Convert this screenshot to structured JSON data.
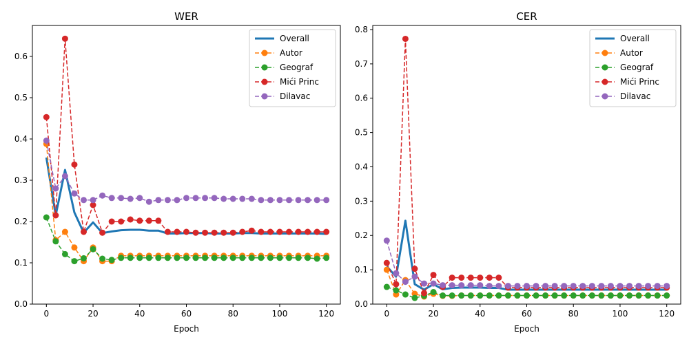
{
  "chart_data": [
    {
      "type": "line",
      "title": "WER",
      "xlabel": "Epoch",
      "ylabel": "",
      "xlim": [
        -6,
        126
      ],
      "ylim": [
        0,
        0.675
      ],
      "xticks": [
        0,
        20,
        40,
        60,
        80,
        100,
        120
      ],
      "yticks": [
        0.0,
        0.1,
        0.2,
        0.3,
        0.4,
        0.5,
        0.6
      ],
      "ytick_labels": [
        "0.0",
        "0.1",
        "0.2",
        "0.3",
        "0.4",
        "0.5",
        "0.6"
      ],
      "legend": "top-right",
      "x": [
        0,
        4,
        8,
        12,
        16,
        20,
        24,
        28,
        32,
        36,
        40,
        44,
        48,
        52,
        56,
        60,
        64,
        68,
        72,
        76,
        80,
        84,
        88,
        92,
        96,
        100,
        104,
        108,
        112,
        116,
        120
      ],
      "series": [
        {
          "name": "Overall",
          "style": "solid",
          "color": "#1f77b4",
          "values": [
            0.355,
            0.215,
            0.325,
            0.222,
            0.173,
            0.198,
            0.172,
            0.176,
            0.179,
            0.18,
            0.18,
            0.178,
            0.178,
            0.171,
            0.171,
            0.172,
            0.172,
            0.172,
            0.171,
            0.171,
            0.171,
            0.172,
            0.172,
            0.171,
            0.171,
            0.171,
            0.171,
            0.171,
            0.171,
            0.171,
            0.17
          ]
        },
        {
          "name": "Autor",
          "style": "dashed",
          "color": "#ff7f0e",
          "values": [
            0.388,
            0.155,
            0.175,
            0.137,
            0.104,
            0.137,
            0.104,
            0.104,
            0.117,
            0.117,
            0.117,
            0.117,
            0.117,
            0.117,
            0.117,
            0.117,
            0.117,
            0.117,
            0.117,
            0.117,
            0.117,
            0.117,
            0.117,
            0.117,
            0.117,
            0.117,
            0.117,
            0.117,
            0.117,
            0.117,
            0.117
          ]
        },
        {
          "name": "Geograf",
          "style": "dashed",
          "color": "#2ca02c",
          "values": [
            0.21,
            0.152,
            0.121,
            0.104,
            0.111,
            0.133,
            0.11,
            0.107,
            0.112,
            0.112,
            0.112,
            0.112,
            0.112,
            0.112,
            0.112,
            0.112,
            0.112,
            0.112,
            0.112,
            0.112,
            0.112,
            0.112,
            0.112,
            0.112,
            0.112,
            0.112,
            0.112,
            0.112,
            0.112,
            0.11,
            0.112
          ]
        },
        {
          "name": "Mići Princ",
          "style": "dashed",
          "color": "#d62728",
          "values": [
            0.453,
            0.215,
            0.643,
            0.338,
            0.175,
            0.24,
            0.173,
            0.2,
            0.2,
            0.205,
            0.202,
            0.202,
            0.202,
            0.175,
            0.175,
            0.175,
            0.173,
            0.173,
            0.173,
            0.173,
            0.173,
            0.175,
            0.178,
            0.175,
            0.175,
            0.175,
            0.175,
            0.175,
            0.175,
            0.175,
            0.175
          ]
        },
        {
          "name": "Dilavac",
          "style": "dashed",
          "color": "#9467bd",
          "values": [
            0.396,
            0.28,
            0.31,
            0.268,
            0.252,
            0.252,
            0.263,
            0.257,
            0.257,
            0.255,
            0.257,
            0.248,
            0.252,
            0.252,
            0.252,
            0.257,
            0.257,
            0.257,
            0.257,
            0.255,
            0.255,
            0.255,
            0.255,
            0.252,
            0.252,
            0.252,
            0.252,
            0.252,
            0.252,
            0.252,
            0.252
          ]
        }
      ]
    },
    {
      "type": "line",
      "title": "CER",
      "xlabel": "Epoch",
      "ylabel": "",
      "xlim": [
        -6,
        126
      ],
      "ylim": [
        0,
        0.812
      ],
      "xticks": [
        0,
        20,
        40,
        60,
        80,
        100,
        120
      ],
      "yticks": [
        0.0,
        0.1,
        0.2,
        0.3,
        0.4,
        0.5,
        0.6,
        0.7,
        0.8
      ],
      "ytick_labels": [
        "0.0",
        "0.1",
        "0.2",
        "0.3",
        "0.4",
        "0.5",
        "0.6",
        "0.7",
        "0.8"
      ],
      "legend": "top-right",
      "x": [
        0,
        4,
        8,
        12,
        16,
        20,
        24,
        28,
        32,
        36,
        40,
        44,
        48,
        52,
        56,
        60,
        64,
        68,
        72,
        76,
        80,
        84,
        88,
        92,
        96,
        100,
        104,
        108,
        112,
        116,
        120
      ],
      "series": [
        {
          "name": "Overall",
          "style": "solid",
          "color": "#1f77b4",
          "values": [
            0.11,
            0.08,
            0.243,
            0.058,
            0.042,
            0.058,
            0.043,
            0.047,
            0.048,
            0.048,
            0.048,
            0.047,
            0.047,
            0.042,
            0.042,
            0.042,
            0.042,
            0.042,
            0.042,
            0.042,
            0.042,
            0.042,
            0.042,
            0.042,
            0.042,
            0.042,
            0.042,
            0.042,
            0.042,
            0.042,
            0.042
          ]
        },
        {
          "name": "Autor",
          "style": "dashed",
          "color": "#ff7f0e",
          "values": [
            0.1,
            0.028,
            0.07,
            0.03,
            0.022,
            0.03,
            0.024,
            0.024,
            0.025,
            0.025,
            0.025,
            0.025,
            0.025,
            0.025,
            0.025,
            0.025,
            0.025,
            0.025,
            0.025,
            0.025,
            0.025,
            0.025,
            0.025,
            0.025,
            0.025,
            0.025,
            0.025,
            0.025,
            0.025,
            0.025,
            0.025
          ]
        },
        {
          "name": "Geograf",
          "style": "dashed",
          "color": "#2ca02c",
          "values": [
            0.05,
            0.04,
            0.028,
            0.018,
            0.024,
            0.035,
            0.025,
            0.025,
            0.025,
            0.025,
            0.025,
            0.025,
            0.025,
            0.025,
            0.025,
            0.025,
            0.025,
            0.025,
            0.025,
            0.025,
            0.025,
            0.025,
            0.025,
            0.025,
            0.025,
            0.025,
            0.025,
            0.025,
            0.025,
            0.025,
            0.025
          ]
        },
        {
          "name": "Mići Princ",
          "style": "dashed",
          "color": "#d62728",
          "values": [
            0.12,
            0.058,
            0.773,
            0.103,
            0.032,
            0.085,
            0.05,
            0.077,
            0.077,
            0.077,
            0.077,
            0.077,
            0.077,
            0.048,
            0.048,
            0.048,
            0.048,
            0.048,
            0.048,
            0.048,
            0.048,
            0.048,
            0.048,
            0.048,
            0.048,
            0.048,
            0.048,
            0.048,
            0.048,
            0.048,
            0.048
          ]
        },
        {
          "name": "Dilavac",
          "style": "dashed",
          "color": "#9467bd",
          "values": [
            0.185,
            0.09,
            0.065,
            0.08,
            0.06,
            0.06,
            0.055,
            0.055,
            0.055,
            0.055,
            0.055,
            0.053,
            0.053,
            0.053,
            0.053,
            0.053,
            0.053,
            0.053,
            0.053,
            0.053,
            0.053,
            0.053,
            0.053,
            0.053,
            0.053,
            0.053,
            0.053,
            0.053,
            0.053,
            0.053,
            0.053
          ]
        }
      ]
    }
  ]
}
